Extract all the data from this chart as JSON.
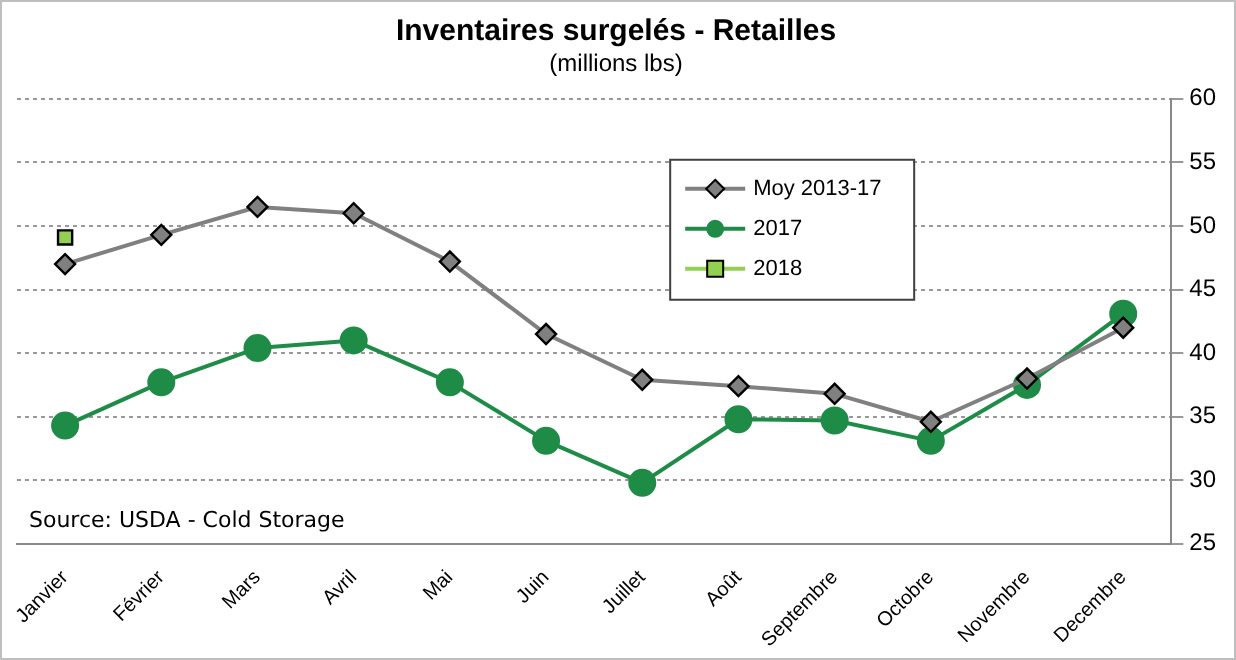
{
  "chart_data": {
    "type": "line",
    "title": "Inventaires surgelés - Retailles",
    "subtitle": "(millions lbs)",
    "categories": [
      "Janvier",
      "Février",
      "Mars",
      "Avril",
      "Mai",
      "Juin",
      "Juillet",
      "Août",
      "Septembre",
      "Octobre",
      "Novembre",
      "Decembre"
    ],
    "series": [
      {
        "name": "Moy 2013-17",
        "color": "#808080",
        "marker": "diamond",
        "values": [
          47,
          49.3,
          51.5,
          51,
          47.2,
          41.5,
          37.9,
          37.4,
          36.8,
          34.6,
          38,
          42
        ]
      },
      {
        "name": "2017",
        "color": "#1e8c46",
        "marker": "circle",
        "values": [
          34.3,
          37.7,
          40.4,
          41,
          37.7,
          33.1,
          29.8,
          34.8,
          34.7,
          33.1,
          37.5,
          43.1
        ]
      },
      {
        "name": "2018",
        "color": "#92d050",
        "marker": "square",
        "values": [
          49.1,
          null,
          null,
          null,
          null,
          null,
          null,
          null,
          null,
          null,
          null,
          null
        ]
      }
    ],
    "ylim": [
      25,
      60
    ],
    "yticks": [
      25,
      30,
      35,
      40,
      45,
      50,
      55,
      60
    ],
    "grid": "y",
    "legend": "top right",
    "annotations": [
      "Source: USDA - Cold Storage"
    ]
  }
}
